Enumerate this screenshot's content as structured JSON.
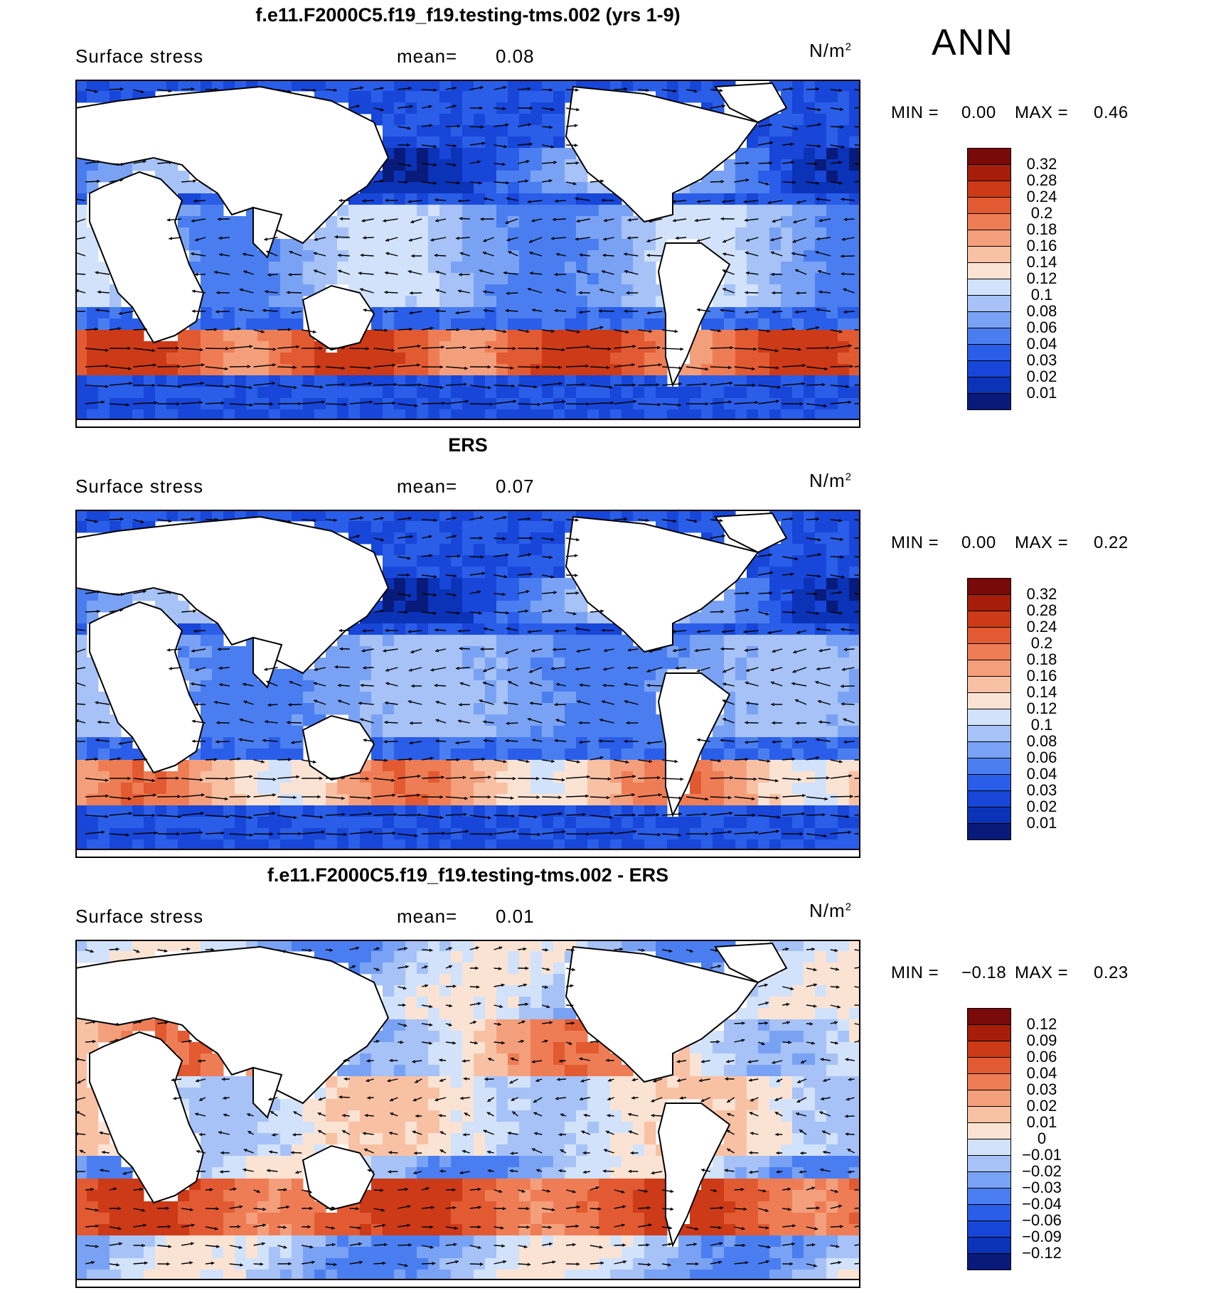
{
  "season": "ANN",
  "colors": {
    "ocean_shades": [
      "#081b7a",
      "#0b33b8",
      "#1746d8",
      "#2a5ee8",
      "#4a7ef0",
      "#7aa2f4",
      "#a6c2f7",
      "#d2e2fa",
      "#fbe3d4",
      "#f8c1a4",
      "#f49f7c",
      "#ee7d55",
      "#e25a31",
      "#cc3a17",
      "#a61e0a",
      "#7a0a0a"
    ],
    "land": "#ffffff",
    "coast": "#000000"
  },
  "panels": [
    {
      "title": "f.e11.F2000C5.f19_f19.testing-tms.002 (yrs 1-9)",
      "variable": "Surface stress",
      "mean_label": "mean=",
      "mean_value": "0.08",
      "units": "N/m",
      "units_sup": "2",
      "min_label": "MIN =",
      "min_value": "0.00",
      "max_label": "MAX =",
      "max_value": "0.46",
      "levels": [
        "0.32",
        "0.28",
        "0.24",
        "0.2",
        "0.18",
        "0.16",
        "0.14",
        "0.12",
        "0.1",
        "0.08",
        "0.06",
        "0.04",
        "0.03",
        "0.02",
        "0.01"
      ],
      "kind": "model"
    },
    {
      "title": "ERS",
      "variable": "Surface stress",
      "mean_label": "mean=",
      "mean_value": "0.07",
      "units": "N/m",
      "units_sup": "2",
      "min_label": "MIN =",
      "min_value": "0.00",
      "max_label": "MAX =",
      "max_value": "0.22",
      "levels": [
        "0.32",
        "0.28",
        "0.24",
        "0.2",
        "0.18",
        "0.16",
        "0.14",
        "0.12",
        "0.1",
        "0.08",
        "0.06",
        "0.04",
        "0.03",
        "0.02",
        "0.01"
      ],
      "kind": "obs"
    },
    {
      "title": "f.e11.F2000C5.f19_f19.testing-tms.002 - ERS",
      "variable": "Surface stress",
      "mean_label": "mean=",
      "mean_value": "0.01",
      "units": "N/m",
      "units_sup": "2",
      "min_label": "MIN =",
      "min_value": "−0.18",
      "max_label": "MAX =",
      "max_value": "0.23",
      "levels": [
        "0.12",
        "0.09",
        "0.06",
        "0.04",
        "0.03",
        "0.02",
        "0.01",
        "0",
        "−0.01",
        "−0.02",
        "−0.03",
        "−0.04",
        "−0.06",
        "−0.09",
        "−0.12"
      ],
      "kind": "diff"
    }
  ]
}
